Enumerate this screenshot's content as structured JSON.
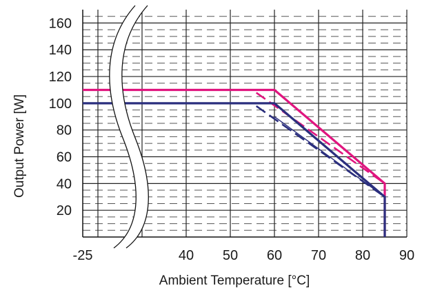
{
  "chart_data": {
    "type": "line",
    "xlabel": "Ambient Temperature [°C]",
    "ylabel": "Output Power [W]",
    "xlim": [
      -25,
      90
    ],
    "ylim": [
      0,
      170
    ],
    "x_ticks": [
      -25,
      40,
      50,
      60,
      70,
      80,
      90
    ],
    "y_ticks": [
      20,
      40,
      60,
      80,
      100,
      120,
      140,
      160
    ],
    "grid": true,
    "axis_break": {
      "between": [
        -25,
        40
      ]
    },
    "series": [
      {
        "color": "#e0157f",
        "style": "solid",
        "x": [
          -25,
          60,
          85,
          85
        ],
        "y": [
          110,
          110,
          40,
          0
        ]
      },
      {
        "color": "#e0157f",
        "style": "dashed",
        "x": [
          -25,
          55,
          85,
          85
        ],
        "y": [
          110,
          110,
          40,
          0
        ]
      },
      {
        "color": "#2b2f7e",
        "style": "solid",
        "x": [
          -25,
          60,
          85,
          85
        ],
        "y": [
          100,
          100,
          30,
          0
        ]
      },
      {
        "color": "#2b2f7e",
        "style": "dashed",
        "x": [
          -25,
          55,
          85,
          85
        ],
        "y": [
          100,
          100,
          30,
          0
        ]
      },
      {
        "color": "#2b2f7e",
        "style": "thin",
        "x": [
          60,
          85
        ],
        "y": [
          90,
          30
        ]
      }
    ]
  }
}
